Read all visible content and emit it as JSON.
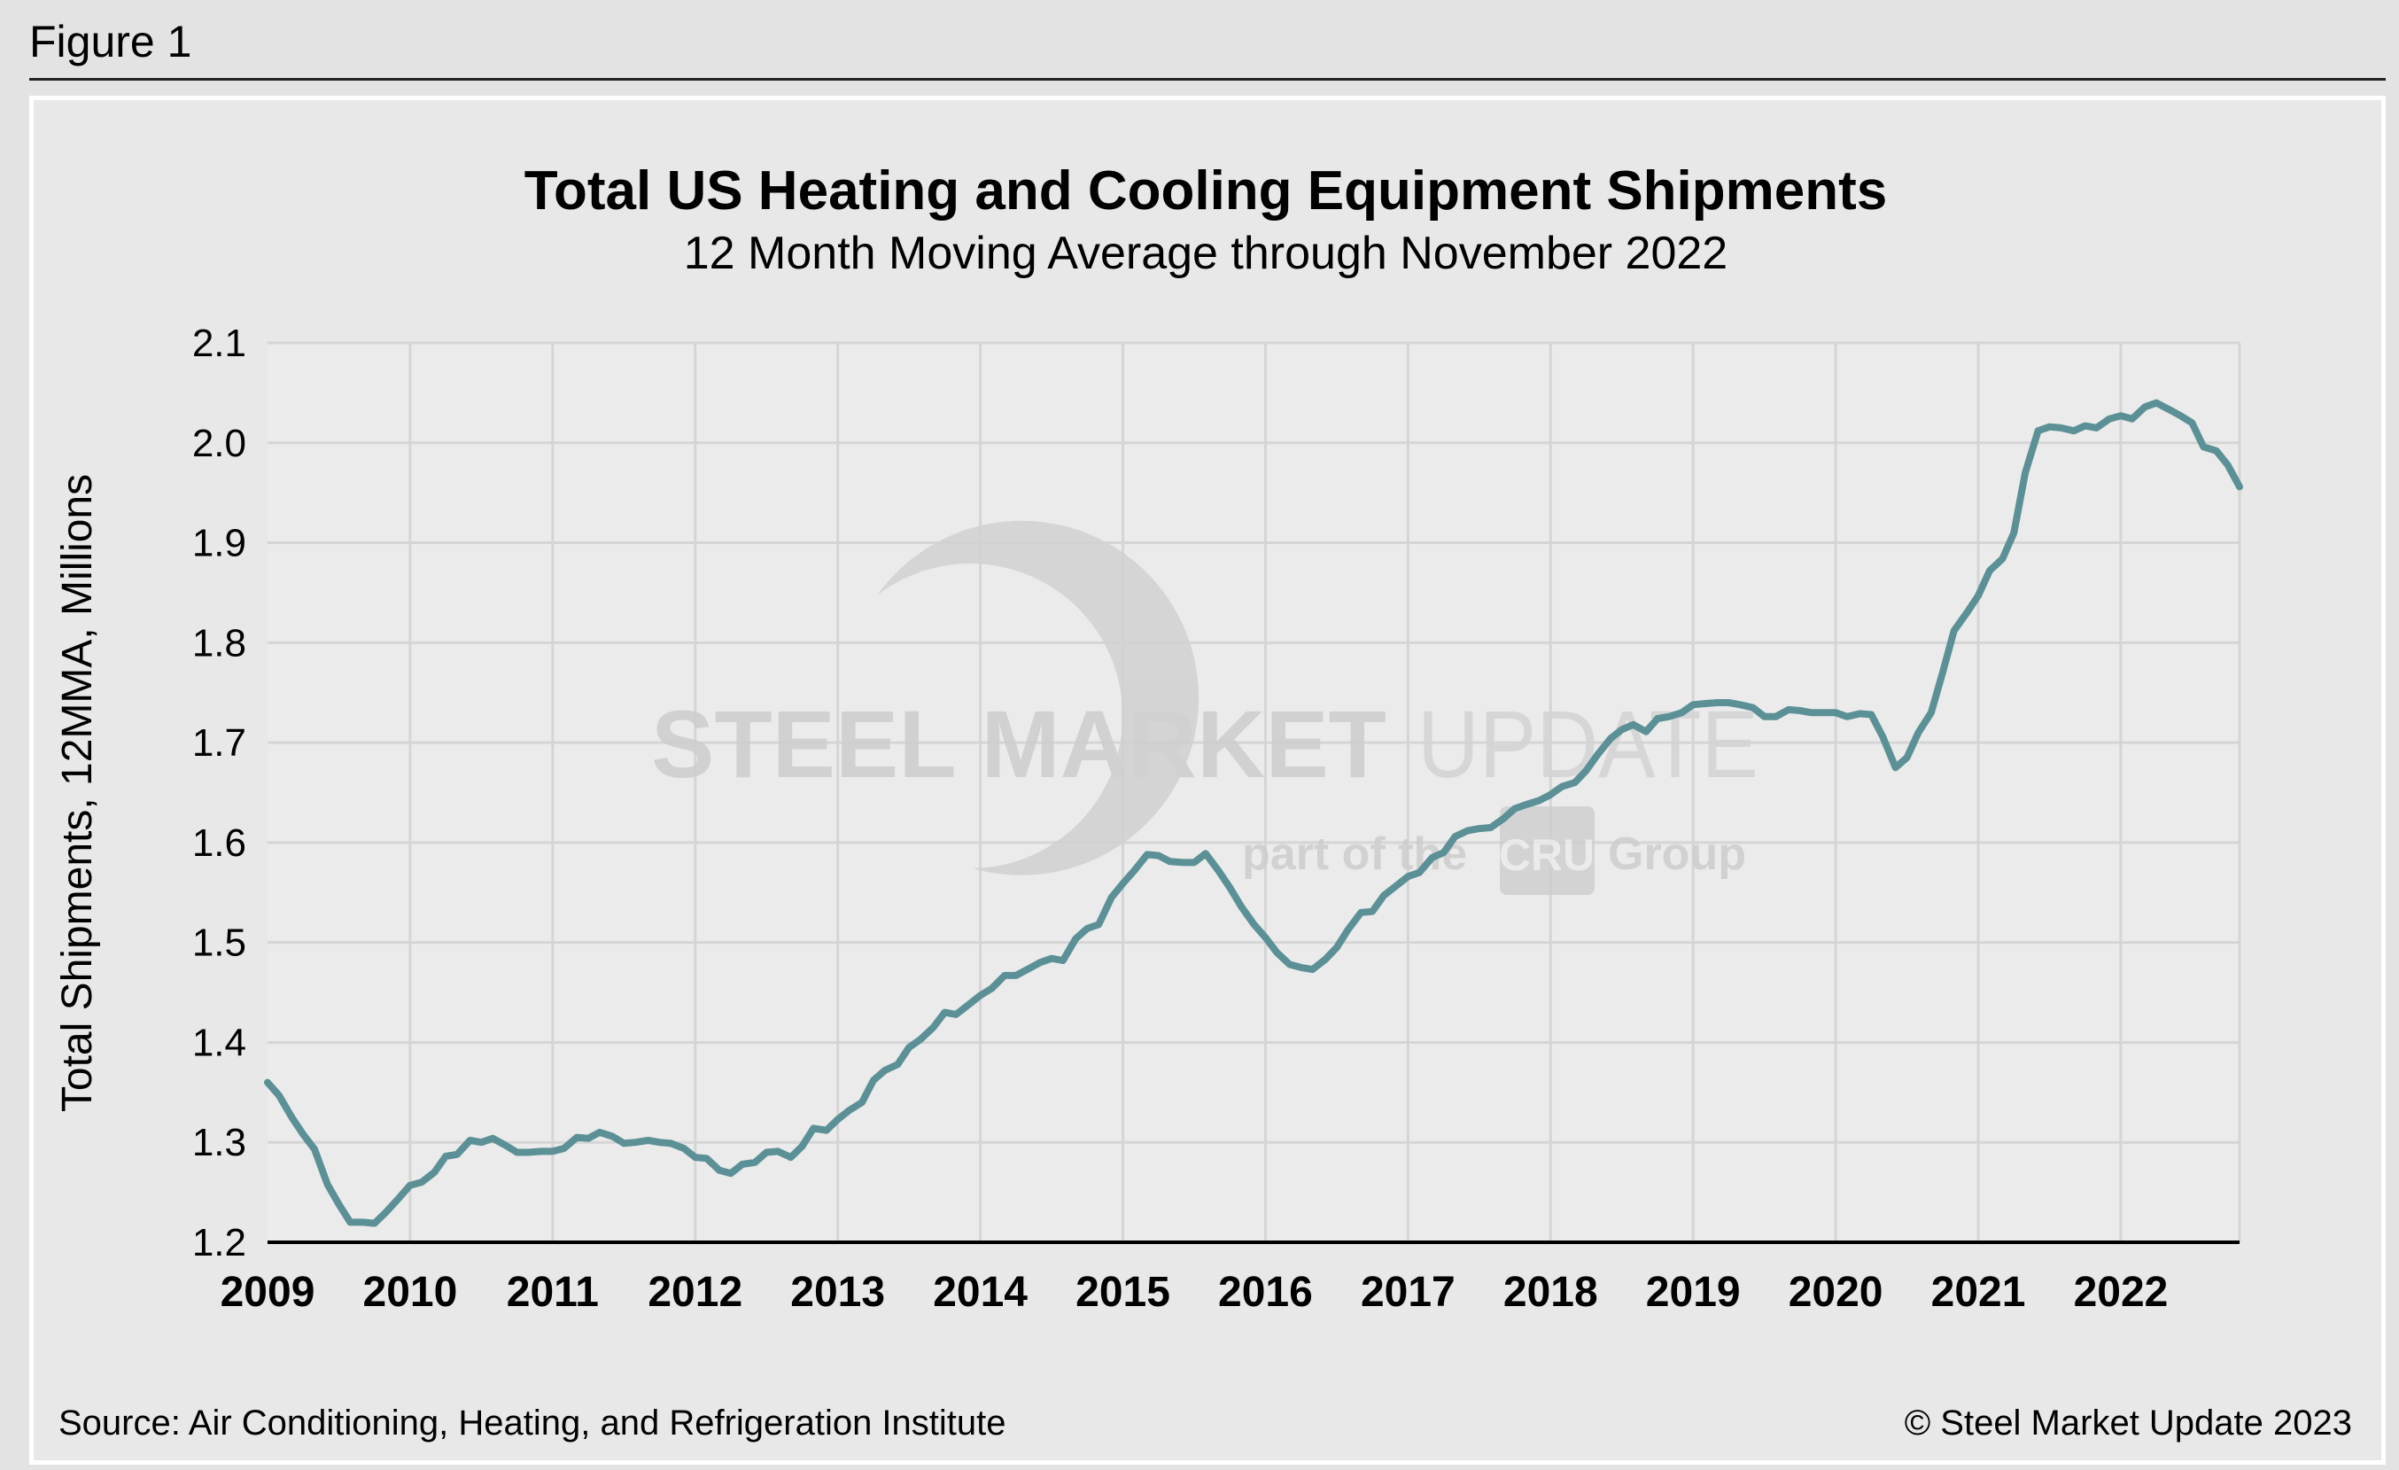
{
  "figure_label": "Figure 1",
  "watermark": {
    "brand_bold": "STEEL MARKET",
    "brand_light": "UPDATE",
    "tagline_pre": "part of the",
    "tagline_badge": "CRU",
    "tagline_post": "Group"
  },
  "footer": {
    "source": "Source: Air Conditioning, Heating, and Refrigeration Institute",
    "copyright": "© Steel Market Update 2023"
  },
  "colors": {
    "line": "#5b9196",
    "plot_bg": "#ebebeb",
    "grid": "#d5d5d5",
    "watermark": "#c9c9c9"
  },
  "chart_data": {
    "type": "line",
    "title": "Total US Heating and Cooling Equipment Shipments",
    "subtitle": "12 Month Moving Average through November 2022",
    "xlabel": "",
    "ylabel": "Total Shipments, 12MMA, Millions",
    "xlim": [
      2009.0,
      2022.833
    ],
    "ylim": [
      1.2,
      2.1
    ],
    "yticks": [
      "1.2",
      "1.3",
      "1.4",
      "1.5",
      "1.6",
      "1.7",
      "1.8",
      "1.9",
      "2.0",
      "2.1"
    ],
    "xticks": [
      "2009",
      "2010",
      "2011",
      "2012",
      "2013",
      "2014",
      "2015",
      "2016",
      "2017",
      "2018",
      "2019",
      "2020",
      "2021",
      "2022"
    ],
    "grid": true,
    "series": [
      {
        "name": "Total Shipments 12MMA",
        "x": [
          2009.0,
          2009.08,
          2009.17,
          2009.25,
          2009.33,
          2009.42,
          2009.5,
          2009.58,
          2009.67,
          2009.75,
          2009.83,
          2009.92,
          2010.0,
          2010.08,
          2010.17,
          2010.25,
          2010.33,
          2010.42,
          2010.5,
          2010.58,
          2010.67,
          2010.75,
          2010.83,
          2010.92,
          2011.0,
          2011.08,
          2011.17,
          2011.25,
          2011.33,
          2011.42,
          2011.5,
          2011.58,
          2011.67,
          2011.75,
          2011.83,
          2011.92,
          2012.0,
          2012.08,
          2012.17,
          2012.25,
          2012.33,
          2012.42,
          2012.5,
          2012.58,
          2012.67,
          2012.75,
          2012.83,
          2012.92,
          2013.0,
          2013.08,
          2013.17,
          2013.25,
          2013.33,
          2013.42,
          2013.5,
          2013.58,
          2013.67,
          2013.75,
          2013.83,
          2013.92,
          2014.0,
          2014.08,
          2014.17,
          2014.25,
          2014.33,
          2014.42,
          2014.5,
          2014.58,
          2014.67,
          2014.75,
          2014.83,
          2014.92,
          2015.0,
          2015.08,
          2015.17,
          2015.25,
          2015.33,
          2015.42,
          2015.5,
          2015.58,
          2015.67,
          2015.75,
          2015.83,
          2015.92,
          2016.0,
          2016.08,
          2016.17,
          2016.25,
          2016.33,
          2016.42,
          2016.5,
          2016.58,
          2016.67,
          2016.75,
          2016.83,
          2016.92,
          2017.0,
          2017.08,
          2017.17,
          2017.25,
          2017.33,
          2017.42,
          2017.5,
          2017.58,
          2017.67,
          2017.75,
          2017.83,
          2017.92,
          2018.0,
          2018.08,
          2018.17,
          2018.25,
          2018.33,
          2018.42,
          2018.5,
          2018.58,
          2018.67,
          2018.75,
          2018.83,
          2018.92,
          2019.0,
          2019.08,
          2019.17,
          2019.25,
          2019.33,
          2019.42,
          2019.5,
          2019.58,
          2019.67,
          2019.75,
          2019.83,
          2019.92,
          2020.0,
          2020.08,
          2020.17,
          2020.25,
          2020.33,
          2020.42,
          2020.5,
          2020.58,
          2020.67,
          2020.75,
          2020.83,
          2020.92,
          2021.0,
          2021.08,
          2021.17,
          2021.25,
          2021.33,
          2021.42,
          2021.5,
          2021.58,
          2021.67,
          2021.75,
          2021.83,
          2021.92,
          2022.0,
          2022.08,
          2022.17,
          2022.25,
          2022.33,
          2022.42,
          2022.5,
          2022.58,
          2022.67,
          2022.75,
          2022.833
        ],
        "values": [
          1.36,
          1.347,
          1.325,
          1.308,
          1.293,
          1.258,
          1.238,
          1.22,
          1.22,
          1.219,
          1.23,
          1.244,
          1.257,
          1.26,
          1.27,
          1.286,
          1.288,
          1.302,
          1.3,
          1.304,
          1.297,
          1.29,
          1.29,
          1.291,
          1.291,
          1.294,
          1.305,
          1.304,
          1.31,
          1.306,
          1.299,
          1.3,
          1.302,
          1.3,
          1.299,
          1.294,
          1.285,
          1.284,
          1.272,
          1.269,
          1.278,
          1.28,
          1.29,
          1.291,
          1.285,
          1.296,
          1.314,
          1.312,
          1.323,
          1.332,
          1.34,
          1.362,
          1.372,
          1.378,
          1.395,
          1.403,
          1.415,
          1.43,
          1.428,
          1.438,
          1.447,
          1.454,
          1.467,
          1.467,
          1.473,
          1.48,
          1.484,
          1.482,
          1.504,
          1.514,
          1.518,
          1.545,
          1.559,
          1.572,
          1.588,
          1.587,
          1.581,
          1.58,
          1.58,
          1.589,
          1.572,
          1.555,
          1.536,
          1.518,
          1.505,
          1.49,
          1.478,
          1.475,
          1.473,
          1.483,
          1.495,
          1.513,
          1.53,
          1.531,
          1.547,
          1.557,
          1.566,
          1.57,
          1.585,
          1.59,
          1.606,
          1.612,
          1.614,
          1.615,
          1.624,
          1.634,
          1.638,
          1.642,
          1.648,
          1.656,
          1.66,
          1.672,
          1.688,
          1.704,
          1.713,
          1.718,
          1.711,
          1.724,
          1.726,
          1.73,
          1.738,
          1.739,
          1.74,
          1.74,
          1.738,
          1.735,
          1.726,
          1.726,
          1.733,
          1.732,
          1.73,
          1.73,
          1.73,
          1.726,
          1.729,
          1.728,
          1.706,
          1.675,
          1.685,
          1.71,
          1.73,
          1.77,
          1.812,
          1.83,
          1.847,
          1.872,
          1.884,
          1.91,
          1.97,
          2.012,
          2.016,
          2.015,
          2.012,
          2.017,
          2.015,
          2.024,
          2.027,
          2.024,
          2.036,
          2.04,
          2.034,
          2.027,
          2.02,
          1.996,
          1.992,
          1.978,
          1.956
        ]
      }
    ]
  }
}
